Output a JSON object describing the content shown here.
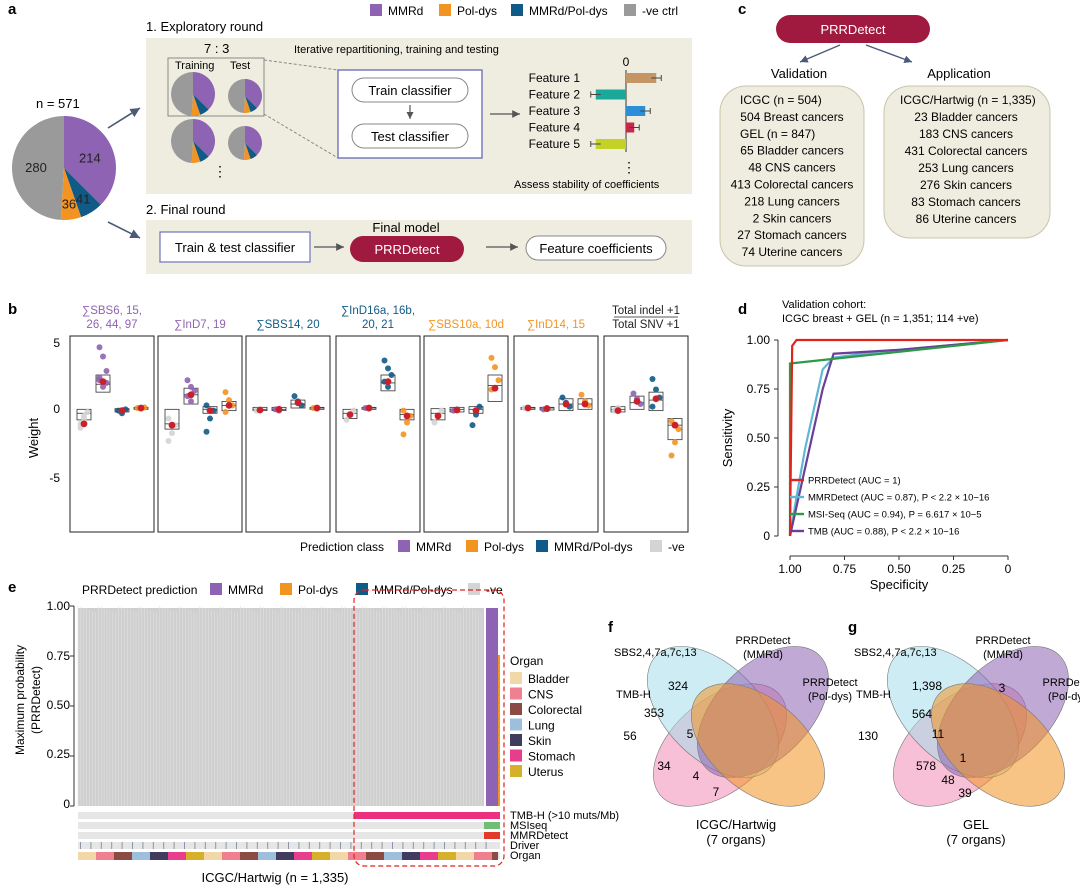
{
  "panel_labels": {
    "a": "a",
    "b": "b",
    "c": "c",
    "d": "d",
    "e": "e",
    "f": "f",
    "g": "g"
  },
  "legend_top": [
    {
      "label": "MMRd",
      "color": "#8e63b3"
    },
    {
      "label": "Pol-dys",
      "color": "#f39422"
    },
    {
      "label": "MMRd/Pol-dys",
      "color": "#0f5a86"
    },
    {
      "label": "-ve ctrl",
      "color": "#9a9a9a"
    }
  ],
  "colors": {
    "mmrd": "#8e63b3",
    "pol": "#f39422",
    "both": "#0f5a86",
    "neg": "#9a9a9a",
    "neg_light": "#d4d4d4",
    "prrdetect": "#a01a3f",
    "beige": "#efeddf",
    "beige_border": "#c9c4a8",
    "blue_box": "#6f73b8",
    "red_dot": "#c9202a",
    "teal": "#4bb6a9",
    "pink": "#ec2f7f"
  },
  "panel_a": {
    "n_label": "n = 571",
    "pie": [
      {
        "label": "214",
        "value": 214,
        "color": "#8e63b3"
      },
      {
        "label": "41",
        "value": 41,
        "color": "#0f5a86"
      },
      {
        "label": "36",
        "value": 36,
        "color": "#f39422"
      },
      {
        "label": "280",
        "value": 280,
        "color": "#9a9a9a"
      }
    ],
    "round1_title": "1. Exploratory round",
    "ratio": "7 : 3",
    "iter_text": "Iterative repartitioning, training and testing",
    "training": "Training",
    "test": "Test",
    "train_classifier": "Train classifier",
    "test_classifier": "Test classifier",
    "zero": "0",
    "features": [
      {
        "label": "Feature 1",
        "value": 0.55,
        "color": "#c49565"
      },
      {
        "label": "Feature 2",
        "value": -0.55,
        "color": "#19a89a"
      },
      {
        "label": "Feature 3",
        "value": 0.35,
        "color": "#2a8fd8"
      },
      {
        "label": "Feature 4",
        "value": 0.15,
        "color": "#c6284b"
      },
      {
        "label": "Feature 5",
        "value": -0.55,
        "color": "#c4d227"
      }
    ],
    "assess": "Assess stability of coefficients",
    "round2_title": "2. Final round",
    "final_model": "Final model",
    "train_test": "Train & test classifier",
    "prrdetect": "PRRDetect",
    "feature_coef": "Feature coefficients"
  },
  "panel_c": {
    "prrdetect": "PRRDetect",
    "validation": "Validation",
    "application": "Application",
    "val_lines": [
      "ICGC (n = 504)",
      "504 Breast cancers",
      "GEL (n = 847)",
      "65 Bladder cancers",
      "48 CNS cancers",
      "413 Colorectal cancers",
      "218 Lung cancers",
      "2 Skin cancers",
      "27 Stomach cancers",
      "74 Uterine cancers"
    ],
    "app_lines": [
      "ICGC/Hartwig (n = 1,335)",
      "23 Bladder cancers",
      "183 CNS cancers",
      "431 Colorectal cancers",
      "253 Lung cancers",
      "276 Skin cancers",
      "83 Stomach cancers",
      "86 Uterine cancers"
    ]
  },
  "panel_b": {
    "ylabel": "Weight",
    "yticks": [
      "5",
      "0",
      "-5"
    ],
    "headers": [
      {
        "lines": [
          "∑SBS6, 15,",
          "26, 44, 97"
        ],
        "color": "#8e63b3"
      },
      {
        "lines": [
          "∑InD7, 19"
        ],
        "color": "#8e63b3"
      },
      {
        "lines": [
          "∑SBS14, 20"
        ],
        "color": "#0f5a86"
      },
      {
        "lines": [
          "∑InD16a, 16b,",
          "20, 21"
        ],
        "color": "#0f5a86"
      },
      {
        "lines": [
          "∑SBS10a, 10d"
        ],
        "color": "#f39422"
      },
      {
        "lines": [
          "∑InD14, 15"
        ],
        "color": "#f39422"
      },
      {
        "lines": [
          "Total indel +1",
          "Total SNV +1"
        ],
        "color": "#222222"
      }
    ],
    "legend_title": "Prediction class",
    "legend": [
      {
        "label": "MMRd",
        "color": "#8e63b3"
      },
      {
        "label": "Pol-dys",
        "color": "#f39422"
      },
      {
        "label": "MMRd/Pol-dys",
        "color": "#0f5a86"
      },
      {
        "label": "-ve",
        "color": "#d4d4d4"
      }
    ]
  },
  "chart_data": [
    {
      "type": "line",
      "title": "Validation cohort: ICGC breast + GEL (n = 1,351; 114 +ve)",
      "xlabel": "Specificity",
      "ylabel": "Sensitivity",
      "xlim": [
        1.0,
        0.0
      ],
      "ylim": [
        0,
        1
      ],
      "xticks": [
        "1.00",
        "0.75",
        "0.50",
        "0.25",
        "0"
      ],
      "yticks": [
        "0",
        "0.25",
        "0.50",
        "0.75",
        "1.00"
      ],
      "series": [
        {
          "name": "PRRDetect (AUC = 1)",
          "color": "#e2231a",
          "x": [
            1.0,
            0.995,
            0.99,
            0.97,
            0.0
          ],
          "y": [
            0,
            0.5,
            0.97,
            1.0,
            1.0
          ]
        },
        {
          "name": "MMRDetect (AUC = 0.87), P < 2.2 × 10−16",
          "color": "#5fb7d5",
          "x": [
            1.0,
            0.97,
            0.93,
            0.88,
            0.85,
            0.8,
            0.6,
            0.0
          ],
          "y": [
            0,
            0.2,
            0.45,
            0.7,
            0.85,
            0.91,
            0.94,
            1.0
          ]
        },
        {
          "name": "MSI-Seq (AUC = 0.94), P = 6.617 × 10−5",
          "color": "#2c9a48",
          "x": [
            1.0,
            1.0,
            0.0
          ],
          "y": [
            0,
            0.88,
            1.0
          ]
        },
        {
          "name": "TMB (AUC = 0.88), P < 2.2 × 10−16",
          "color": "#6a3f97",
          "x": [
            1.0,
            0.96,
            0.9,
            0.85,
            0.8,
            0.5,
            0.0
          ],
          "y": [
            0,
            0.2,
            0.5,
            0.75,
            0.93,
            0.95,
            1.0
          ]
        }
      ]
    }
  ],
  "panel_e": {
    "legend_title": "PRRDetect prediction",
    "legend": [
      {
        "label": "MMRd",
        "color": "#8e63b3"
      },
      {
        "label": "Pol-dys",
        "color": "#f39422"
      },
      {
        "label": "MMRd/Pol-dys",
        "color": "#0f5a86"
      },
      {
        "label": "-ve",
        "color": "#d4d4d4"
      }
    ],
    "ylabel1": "Maximum probability",
    "ylabel2": "(PRRDetect)",
    "yticks": [
      "1.00",
      "0.75",
      "0.50",
      "0.25",
      "0"
    ],
    "organ_title": "Organ",
    "organs": [
      {
        "label": "Bladder",
        "color": "#f2d7a8"
      },
      {
        "label": "CNS",
        "color": "#f07f90"
      },
      {
        "label": "Colorectal",
        "color": "#8b4a42"
      },
      {
        "label": "Lung",
        "color": "#9ebfdc"
      },
      {
        "label": "Skin",
        "color": "#3f3c5e"
      },
      {
        "label": "Stomach",
        "color": "#e83d8d"
      },
      {
        "label": "Uterus",
        "color": "#d6b02a"
      }
    ],
    "tracks": [
      "TMB-H (>10 muts/Mb)",
      "MSIseq",
      "MMRDetect",
      "Driver",
      "Organ"
    ],
    "xlabel": "ICGC/Hartwig (n = 1,335)"
  },
  "panel_f": {
    "sets": [
      "SBS2,4,7a,7c,13",
      "PRRDetect\n(MMRd)",
      "PRRDetect\n(Pol-dys)",
      "TMB-H"
    ],
    "numbers": [
      "324",
      "353",
      "5",
      "56",
      "34",
      "4",
      "7"
    ],
    "caption": [
      "ICGC/Hartwig",
      "(7 organs)"
    ]
  },
  "panel_g": {
    "sets": [
      "SBS2,4,7a,7c,13",
      "PRRDetect\n(MMRd)",
      "PRRDetect\n(Pol-dys)",
      "TMB-H"
    ],
    "numbers": [
      "1,398",
      "3",
      "564",
      "11",
      "130",
      "1",
      "578",
      "48",
      "39"
    ],
    "caption": [
      "GEL",
      "(7 organs)"
    ]
  }
}
